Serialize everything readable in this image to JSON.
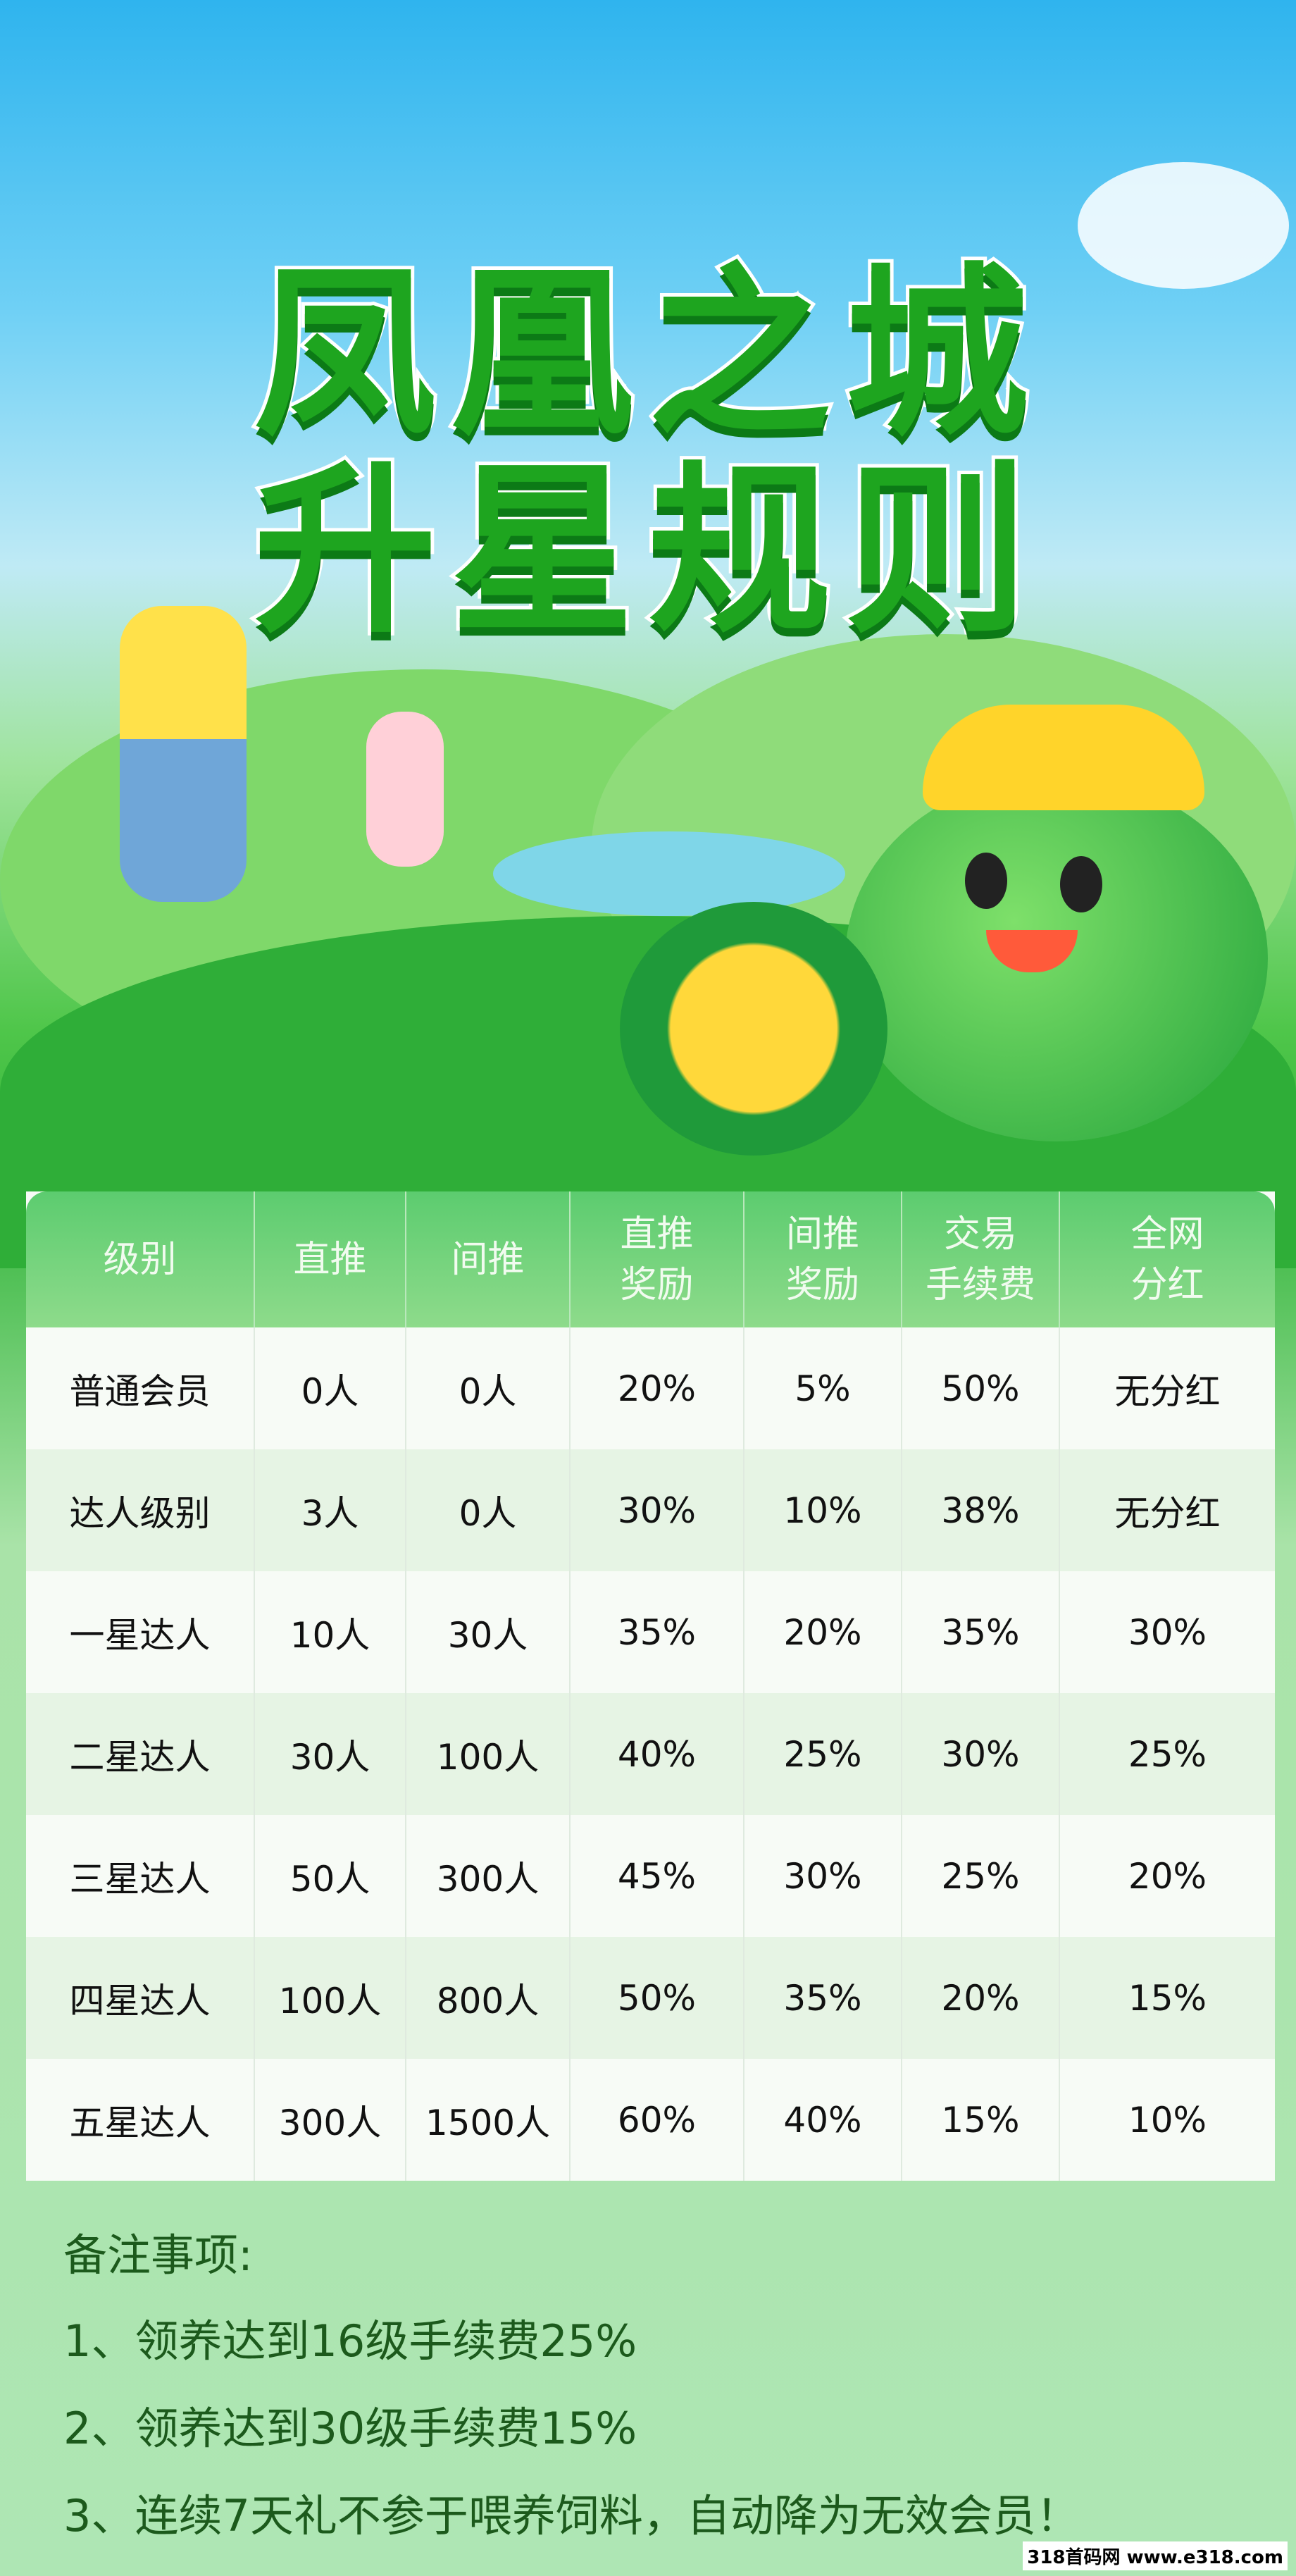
{
  "title": {
    "line1": "凤凰之城",
    "line2": "升星规则"
  },
  "table": {
    "headers": [
      [
        "级别"
      ],
      [
        "直推"
      ],
      [
        "间推"
      ],
      [
        "直推",
        "奖励"
      ],
      [
        "间推",
        "奖励"
      ],
      [
        "交易",
        "手续费"
      ],
      [
        "全网",
        "分红"
      ]
    ],
    "rows": [
      [
        "普通会员",
        "0人",
        "0人",
        "20%",
        "5%",
        "50%",
        "无分红"
      ],
      [
        "达人级别",
        "3人",
        "0人",
        "30%",
        "10%",
        "38%",
        "无分红"
      ],
      [
        "一星达人",
        "10人",
        "30人",
        "35%",
        "20%",
        "35%",
        "30%"
      ],
      [
        "二星达人",
        "30人",
        "100人",
        "40%",
        "25%",
        "30%",
        "25%"
      ],
      [
        "三星达人",
        "50人",
        "300人",
        "45%",
        "30%",
        "25%",
        "20%"
      ],
      [
        "四星达人",
        "100人",
        "800人",
        "50%",
        "35%",
        "20%",
        "15%"
      ],
      [
        "五星达人",
        "300人",
        "1500人",
        "60%",
        "40%",
        "15%",
        "10%"
      ]
    ]
  },
  "notes": {
    "heading": "备注事项:",
    "items": [
      "1、领养达到16级手续费25%",
      "2、领养达到30级手续费15%",
      "3、连续7天礼不参于喂养饲料，自动降为无效会员！"
    ]
  },
  "watermark": "318首码网 www.e318.com",
  "colors": {
    "title_green": "#1ea51f",
    "header_green": "#5ccc6f",
    "notes_text": "#1c5a1c"
  }
}
